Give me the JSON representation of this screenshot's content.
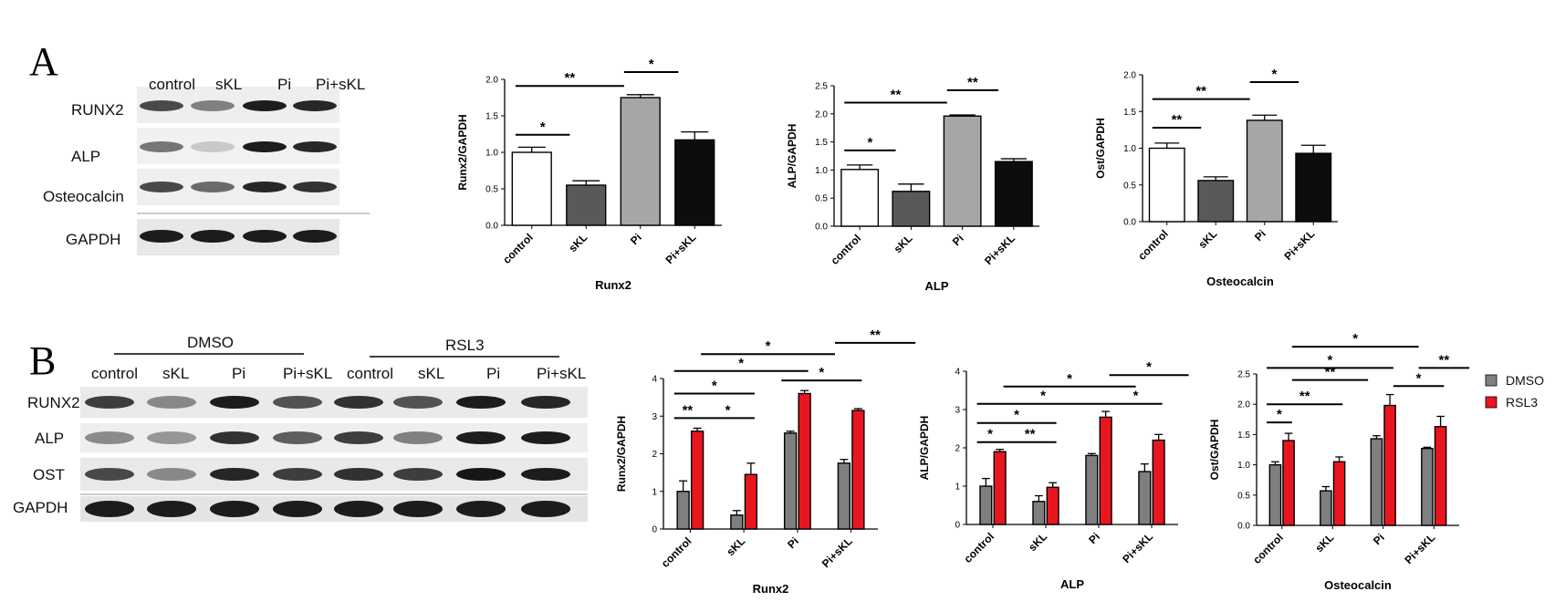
{
  "panels": {
    "A": "A",
    "B": "B"
  },
  "blotA": {
    "lanes": [
      "control",
      "sKL",
      "Pi",
      "Pi+sKL"
    ],
    "rows": [
      "RUNX2",
      "ALP",
      "Osteocalcin",
      "GAPDH"
    ]
  },
  "blotB": {
    "groups": [
      "DMSO",
      "RSL3"
    ],
    "lanes": [
      "control",
      "sKL",
      "Pi",
      "Pi+sKL",
      "control",
      "sKL",
      "Pi",
      "Pi+sKL"
    ],
    "rows": [
      "RUNX2",
      "ALP",
      "OST",
      "GAPDH"
    ]
  },
  "legend": {
    "entries": [
      {
        "name": "DMSO",
        "color": "#7f7f7f"
      },
      {
        "name": "RSL3",
        "color": "#e8161f"
      }
    ]
  },
  "chart_data": [
    {
      "type": "bar",
      "categories": [
        "control",
        "sKL",
        "Pi",
        "Pi+sKL"
      ],
      "values": [
        1.0,
        0.55,
        1.75,
        1.17
      ],
      "errors": [
        0.07,
        0.06,
        0.04,
        0.11
      ],
      "colors": [
        "#ffffff",
        "#595959",
        "#a6a6a6",
        "#0d0d0d"
      ],
      "xlabel": "Runx2",
      "ylabel": "Runx2/GAPDH",
      "ylim": [
        0,
        2.0
      ],
      "yticks": [
        "0.0",
        "0.5",
        "1.0",
        "1.5",
        "2.0"
      ],
      "significance": [
        {
          "from": 0,
          "to": 1,
          "label": "*",
          "y": 1.24
        },
        {
          "from": 0,
          "to": 2,
          "label": "**",
          "y": 1.91
        },
        {
          "from": 2,
          "to": 3,
          "label": "*",
          "y": 2.1
        }
      ]
    },
    {
      "type": "bar",
      "categories": [
        "control",
        "sKL",
        "Pi",
        "Pi+sKL"
      ],
      "values": [
        1.01,
        0.62,
        1.96,
        1.15
      ],
      "errors": [
        0.08,
        0.13,
        0.02,
        0.05
      ],
      "colors": [
        "#ffffff",
        "#595959",
        "#a6a6a6",
        "#0d0d0d"
      ],
      "xlabel": "ALP",
      "ylabel": "ALP/GAPDH",
      "ylim": [
        0,
        2.5
      ],
      "yticks": [
        "0.0",
        "0.5",
        "1.0",
        "1.5",
        "2.0",
        "2.5"
      ],
      "significance": [
        {
          "from": 0,
          "to": 1,
          "label": "*",
          "y": 1.35
        },
        {
          "from": 0,
          "to": 2,
          "label": "**",
          "y": 2.2
        },
        {
          "from": 2,
          "to": 3,
          "label": "**",
          "y": 2.42
        }
      ]
    },
    {
      "type": "bar",
      "categories": [
        "control",
        "sKL",
        "Pi",
        "Pi+sKL"
      ],
      "values": [
        1.0,
        0.56,
        1.38,
        0.93
      ],
      "errors": [
        0.07,
        0.05,
        0.07,
        0.11
      ],
      "colors": [
        "#ffffff",
        "#595959",
        "#a6a6a6",
        "#0d0d0d"
      ],
      "xlabel": "Osteocalcin",
      "ylabel": "Ost/GAPDH",
      "ylim": [
        0,
        2.0
      ],
      "yticks": [
        "0.0",
        "0.5",
        "1.0",
        "1.5",
        "2.0"
      ],
      "significance": [
        {
          "from": 0,
          "to": 1,
          "label": "**",
          "y": 1.28
        },
        {
          "from": 0,
          "to": 2,
          "label": "**",
          "y": 1.67
        },
        {
          "from": 2,
          "to": 3,
          "label": "*",
          "y": 1.9
        }
      ]
    },
    {
      "type": "bar",
      "categories": [
        "control",
        "sKL",
        "Pi",
        "Pi+sKL"
      ],
      "series": [
        {
          "name": "DMSO",
          "color": "#7f7f7f",
          "values": [
            1.0,
            0.37,
            2.55,
            1.75
          ],
          "errors": [
            0.28,
            0.12,
            0.05,
            0.1
          ]
        },
        {
          "name": "RSL3",
          "color": "#e8161f",
          "values": [
            2.6,
            1.45,
            3.6,
            3.15
          ],
          "errors": [
            0.08,
            0.3,
            0.08,
            0.05
          ]
        }
      ],
      "xlabel": "Runx2",
      "ylabel": "Runx2/GAPDH",
      "ylim": [
        0,
        4
      ],
      "yticks": [
        "0",
        "1",
        "2",
        "3",
        "4"
      ],
      "significance": [
        {
          "from": 0,
          "to": 0.5,
          "label": "**",
          "y": 2.95
        },
        {
          "from": 0.5,
          "to": 1.5,
          "label": "*",
          "y": 2.95
        },
        {
          "from": 0,
          "to": 1.5,
          "label": "*",
          "y": 3.6
        },
        {
          "from": 0,
          "to": 2.5,
          "label": "*",
          "y": 4.2
        },
        {
          "from": 0.5,
          "to": 3,
          "label": "*",
          "y": 4.65
        },
        {
          "from": 2,
          "to": 3.5,
          "label": "*",
          "y": 3.95
        },
        {
          "from": 3,
          "to": 4.5,
          "label": "**",
          "y": 4.95
        }
      ]
    },
    {
      "type": "bar",
      "categories": [
        "control",
        "sKL",
        "Pi",
        "Pi+sKL"
      ],
      "series": [
        {
          "name": "DMSO",
          "color": "#7f7f7f",
          "values": [
            1.0,
            0.6,
            1.8,
            1.38
          ],
          "errors": [
            0.2,
            0.15,
            0.05,
            0.2
          ]
        },
        {
          "name": "RSL3",
          "color": "#e8161f",
          "values": [
            1.9,
            0.97,
            2.8,
            2.2
          ],
          "errors": [
            0.06,
            0.12,
            0.15,
            0.15
          ]
        }
      ],
      "xlabel": "ALP",
      "ylabel": "ALP/GAPDH",
      "ylim": [
        0,
        4
      ],
      "yticks": [
        "0",
        "1",
        "2",
        "3",
        "4"
      ],
      "significance": [
        {
          "from": 0,
          "to": 0.5,
          "label": "*",
          "y": 2.15
        },
        {
          "from": 0.5,
          "to": 1.5,
          "label": "**",
          "y": 2.15
        },
        {
          "from": 0,
          "to": 1.5,
          "label": "*",
          "y": 2.65
        },
        {
          "from": 0,
          "to": 2.5,
          "label": "*",
          "y": 3.15
        },
        {
          "from": 0.5,
          "to": 3,
          "label": "*",
          "y": 3.6
        },
        {
          "from": 2.5,
          "to": 3.5,
          "label": "*",
          "y": 3.15
        },
        {
          "from": 2.5,
          "to": 4,
          "label": "*",
          "y": 3.9
        }
      ]
    },
    {
      "type": "bar",
      "categories": [
        "control",
        "sKL",
        "Pi",
        "Pi+sKL"
      ],
      "series": [
        {
          "name": "DMSO",
          "color": "#7f7f7f",
          "values": [
            1.0,
            0.57,
            1.43,
            1.27
          ],
          "errors": [
            0.05,
            0.07,
            0.05,
            0.02
          ]
        },
        {
          "name": "RSL3",
          "color": "#e8161f",
          "values": [
            1.4,
            1.05,
            1.98,
            1.63
          ],
          "errors": [
            0.12,
            0.08,
            0.18,
            0.17
          ]
        }
      ],
      "xlabel": "Osteocalcin",
      "ylabel": "Ost/GAPDH",
      "ylim": [
        0,
        2.5
      ],
      "yticks": [
        "0.0",
        "0.5",
        "1.0",
        "1.5",
        "2.0",
        "2.5"
      ],
      "significance": [
        {
          "from": 0,
          "to": 0.5,
          "label": "*",
          "y": 1.7
        },
        {
          "from": 0,
          "to": 1.5,
          "label": "**",
          "y": 2.0
        },
        {
          "from": 0.5,
          "to": 2,
          "label": "**",
          "y": 2.4
        },
        {
          "from": 0,
          "to": 2.5,
          "label": "*",
          "y": 2.6
        },
        {
          "from": 0.5,
          "to": 3,
          "label": "*",
          "y": 2.95
        },
        {
          "from": 2.5,
          "to": 3.5,
          "label": "*",
          "y": 2.3
        },
        {
          "from": 3,
          "to": 4,
          "label": "**",
          "y": 2.6
        }
      ]
    }
  ]
}
